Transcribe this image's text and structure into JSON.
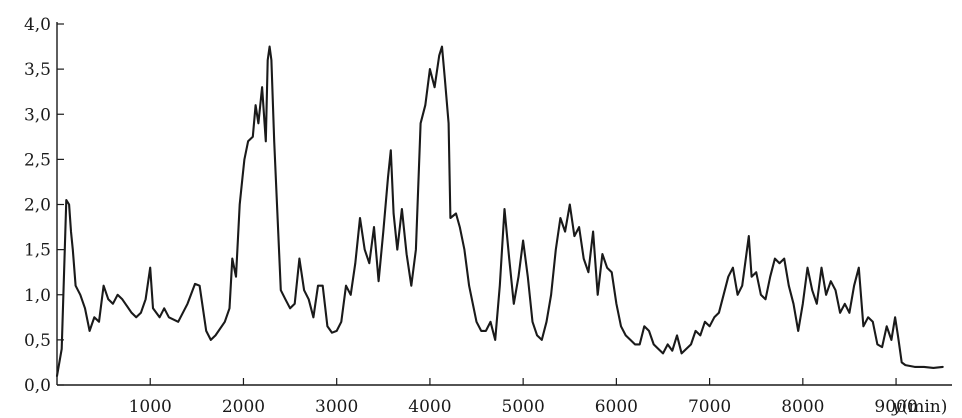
{
  "chart_data": {
    "type": "line",
    "title": "",
    "xlabel_var": "y",
    "xlabel_unit": "(min)",
    "ylabel": "",
    "xlim": [
      0,
      9600
    ],
    "ylim": [
      0,
      4.0
    ],
    "x_ticks": [
      1000,
      2000,
      3000,
      4000,
      5000,
      6000,
      7000,
      8000,
      9000
    ],
    "x_tick_labels": [
      "1000",
      "2000",
      "3000",
      "4000",
      "5000",
      "6000",
      "7000",
      "8000",
      "9000"
    ],
    "y_ticks": [
      0,
      0.5,
      1.0,
      1.5,
      2.0,
      2.5,
      3.0,
      3.5,
      4.0
    ],
    "y_tick_labels": [
      "0,0",
      "0,5",
      "1,0",
      "1,5",
      "2,0",
      "2,5",
      "3,0",
      "3,5",
      "4,0"
    ],
    "grid": false,
    "series": [
      {
        "points": [
          [
            0,
            0.1
          ],
          [
            50,
            0.4
          ],
          [
            80,
            1.4
          ],
          [
            100,
            2.05
          ],
          [
            130,
            2.0
          ],
          [
            150,
            1.7
          ],
          [
            170,
            1.5
          ],
          [
            200,
            1.1
          ],
          [
            250,
            1.0
          ],
          [
            300,
            0.85
          ],
          [
            350,
            0.6
          ],
          [
            400,
            0.75
          ],
          [
            450,
            0.7
          ],
          [
            500,
            1.1
          ],
          [
            550,
            0.95
          ],
          [
            600,
            0.9
          ],
          [
            650,
            1.0
          ],
          [
            700,
            0.95
          ],
          [
            800,
            0.8
          ],
          [
            850,
            0.75
          ],
          [
            900,
            0.8
          ],
          [
            950,
            0.95
          ],
          [
            1000,
            1.3
          ],
          [
            1030,
            0.85
          ],
          [
            1100,
            0.75
          ],
          [
            1150,
            0.85
          ],
          [
            1200,
            0.75
          ],
          [
            1300,
            0.7
          ],
          [
            1400,
            0.9
          ],
          [
            1480,
            1.12
          ],
          [
            1530,
            1.1
          ],
          [
            1600,
            0.6
          ],
          [
            1650,
            0.5
          ],
          [
            1700,
            0.55
          ],
          [
            1800,
            0.7
          ],
          [
            1850,
            0.85
          ],
          [
            1880,
            1.4
          ],
          [
            1920,
            1.2
          ],
          [
            1960,
            2.0
          ],
          [
            1990,
            2.3
          ],
          [
            2010,
            2.5
          ],
          [
            2050,
            2.7
          ],
          [
            2100,
            2.75
          ],
          [
            2130,
            3.1
          ],
          [
            2160,
            2.9
          ],
          [
            2200,
            3.3
          ],
          [
            2240,
            2.7
          ],
          [
            2260,
            3.6
          ],
          [
            2280,
            3.75
          ],
          [
            2300,
            3.6
          ],
          [
            2330,
            2.7
          ],
          [
            2360,
            2.0
          ],
          [
            2400,
            1.05
          ],
          [
            2450,
            0.95
          ],
          [
            2500,
            0.85
          ],
          [
            2550,
            0.9
          ],
          [
            2600,
            1.4
          ],
          [
            2650,
            1.05
          ],
          [
            2700,
            0.95
          ],
          [
            2750,
            0.75
          ],
          [
            2800,
            1.1
          ],
          [
            2850,
            1.1
          ],
          [
            2900,
            0.65
          ],
          [
            2950,
            0.58
          ],
          [
            3000,
            0.6
          ],
          [
            3050,
            0.7
          ],
          [
            3100,
            1.1
          ],
          [
            3150,
            1.0
          ],
          [
            3200,
            1.35
          ],
          [
            3250,
            1.85
          ],
          [
            3300,
            1.5
          ],
          [
            3350,
            1.35
          ],
          [
            3400,
            1.75
          ],
          [
            3450,
            1.15
          ],
          [
            3500,
            1.7
          ],
          [
            3550,
            2.3
          ],
          [
            3580,
            2.6
          ],
          [
            3610,
            1.9
          ],
          [
            3650,
            1.5
          ],
          [
            3700,
            1.95
          ],
          [
            3750,
            1.45
          ],
          [
            3800,
            1.1
          ],
          [
            3850,
            1.5
          ],
          [
            3900,
            2.9
          ],
          [
            3950,
            3.1
          ],
          [
            4000,
            3.5
          ],
          [
            4050,
            3.3
          ],
          [
            4100,
            3.65
          ],
          [
            4130,
            3.75
          ],
          [
            4160,
            3.4
          ],
          [
            4200,
            2.9
          ],
          [
            4220,
            1.85
          ],
          [
            4280,
            1.9
          ],
          [
            4320,
            1.75
          ],
          [
            4370,
            1.5
          ],
          [
            4420,
            1.1
          ],
          [
            4500,
            0.7
          ],
          [
            4550,
            0.6
          ],
          [
            4600,
            0.6
          ],
          [
            4650,
            0.7
          ],
          [
            4700,
            0.5
          ],
          [
            4750,
            1.1
          ],
          [
            4800,
            1.95
          ],
          [
            4850,
            1.4
          ],
          [
            4900,
            0.9
          ],
          [
            4950,
            1.2
          ],
          [
            5000,
            1.6
          ],
          [
            5050,
            1.2
          ],
          [
            5100,
            0.7
          ],
          [
            5150,
            0.55
          ],
          [
            5200,
            0.5
          ],
          [
            5250,
            0.7
          ],
          [
            5300,
            1.0
          ],
          [
            5350,
            1.5
          ],
          [
            5400,
            1.85
          ],
          [
            5450,
            1.7
          ],
          [
            5500,
            2.0
          ],
          [
            5550,
            1.65
          ],
          [
            5600,
            1.75
          ],
          [
            5650,
            1.4
          ],
          [
            5700,
            1.25
          ],
          [
            5750,
            1.7
          ],
          [
            5800,
            1.0
          ],
          [
            5850,
            1.45
          ],
          [
            5900,
            1.3
          ],
          [
            5950,
            1.25
          ],
          [
            6000,
            0.9
          ],
          [
            6050,
            0.65
          ],
          [
            6100,
            0.55
          ],
          [
            6150,
            0.5
          ],
          [
            6200,
            0.45
          ],
          [
            6250,
            0.45
          ],
          [
            6300,
            0.65
          ],
          [
            6350,
            0.6
          ],
          [
            6400,
            0.45
          ],
          [
            6450,
            0.4
          ],
          [
            6500,
            0.35
          ],
          [
            6550,
            0.45
          ],
          [
            6600,
            0.38
          ],
          [
            6650,
            0.55
          ],
          [
            6700,
            0.35
          ],
          [
            6750,
            0.4
          ],
          [
            6800,
            0.45
          ],
          [
            6850,
            0.6
          ],
          [
            6900,
            0.55
          ],
          [
            6950,
            0.7
          ],
          [
            7000,
            0.65
          ],
          [
            7050,
            0.75
          ],
          [
            7100,
            0.8
          ],
          [
            7150,
            1.0
          ],
          [
            7200,
            1.2
          ],
          [
            7250,
            1.3
          ],
          [
            7300,
            1.0
          ],
          [
            7350,
            1.1
          ],
          [
            7420,
            1.65
          ],
          [
            7450,
            1.2
          ],
          [
            7500,
            1.25
          ],
          [
            7550,
            1.0
          ],
          [
            7600,
            0.95
          ],
          [
            7650,
            1.2
          ],
          [
            7700,
            1.4
          ],
          [
            7750,
            1.35
          ],
          [
            7800,
            1.4
          ],
          [
            7850,
            1.1
          ],
          [
            7900,
            0.9
          ],
          [
            7950,
            0.6
          ],
          [
            8000,
            0.9
          ],
          [
            8050,
            1.3
          ],
          [
            8100,
            1.05
          ],
          [
            8150,
            0.9
          ],
          [
            8200,
            1.3
          ],
          [
            8250,
            1.0
          ],
          [
            8300,
            1.15
          ],
          [
            8350,
            1.05
          ],
          [
            8400,
            0.8
          ],
          [
            8450,
            0.9
          ],
          [
            8500,
            0.8
          ],
          [
            8550,
            1.1
          ],
          [
            8600,
            1.3
          ],
          [
            8650,
            0.65
          ],
          [
            8700,
            0.75
          ],
          [
            8750,
            0.7
          ],
          [
            8800,
            0.45
          ],
          [
            8850,
            0.42
          ],
          [
            8900,
            0.65
          ],
          [
            8950,
            0.5
          ],
          [
            8990,
            0.75
          ],
          [
            9020,
            0.55
          ],
          [
            9060,
            0.25
          ],
          [
            9100,
            0.22
          ],
          [
            9200,
            0.2
          ],
          [
            9300,
            0.2
          ],
          [
            9400,
            0.19
          ],
          [
            9500,
            0.2
          ]
        ]
      }
    ]
  }
}
